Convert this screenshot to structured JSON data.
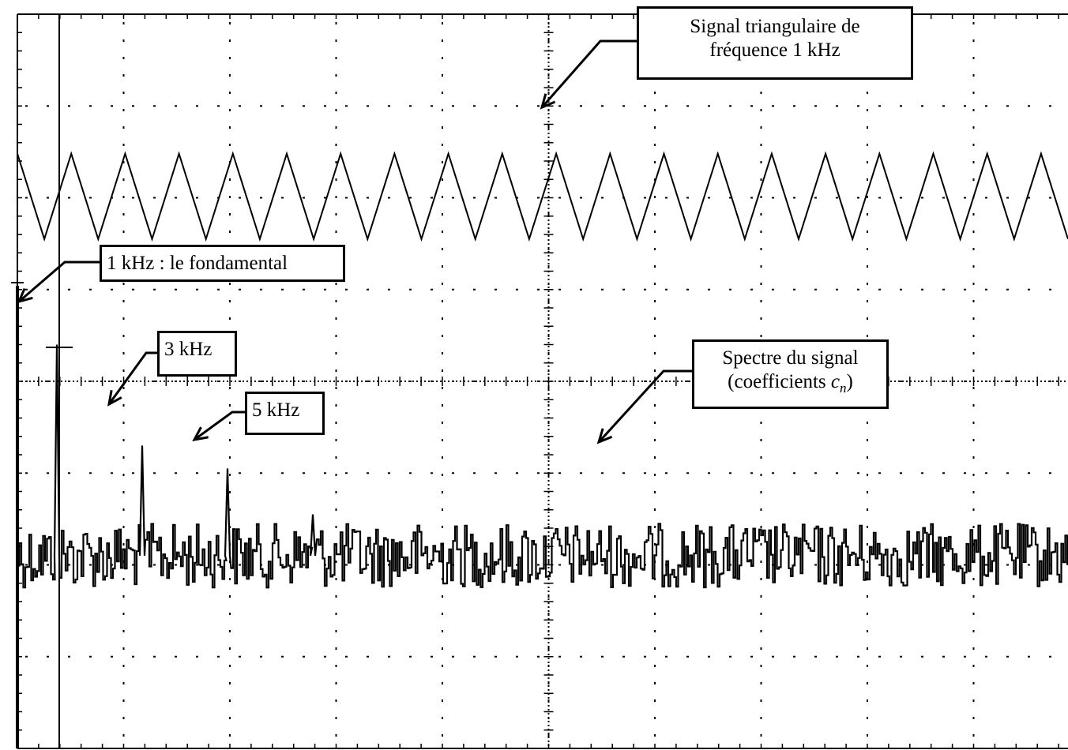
{
  "annotations": {
    "triangle_signal": {
      "line1": "Signal  triangulaire de",
      "line2": "fréquence 1 kHz"
    },
    "fundamental": "1 kHz :  le fondamental",
    "harmonic3": "3 kHz",
    "harmonic5": "5 kHz",
    "spectrum": {
      "line1": "Spectre du signal",
      "line2_prefix": "(coefficients ",
      "line2_var": "c",
      "line2_sub": "n",
      "line2_suffix": ")"
    }
  },
  "chart_data": [
    {
      "type": "line",
      "grid": true,
      "xlim": [
        0,
        10
      ],
      "ylim": [
        -4,
        4
      ],
      "x_divisions": 10,
      "y_divisions": 8,
      "traces": [
        {
          "kind": "triangle",
          "frequency_khz": 1,
          "periods_visible": 19.5,
          "y_min": 1.55,
          "y_max": 2.48
        },
        {
          "kind": "spectrum",
          "peaks": [
            {
              "frequency_khz": 1,
              "height_div": 2.3
            },
            {
              "frequency_khz": 3,
              "height_div": 1.2
            },
            {
              "frequency_khz": 5,
              "height_div": 0.95
            },
            {
              "frequency_khz": 7,
              "height_div": 0.45
            }
          ],
          "noise_floor_div": -1.9,
          "noise_amplitude_div": 0.35
        }
      ]
    }
  ]
}
